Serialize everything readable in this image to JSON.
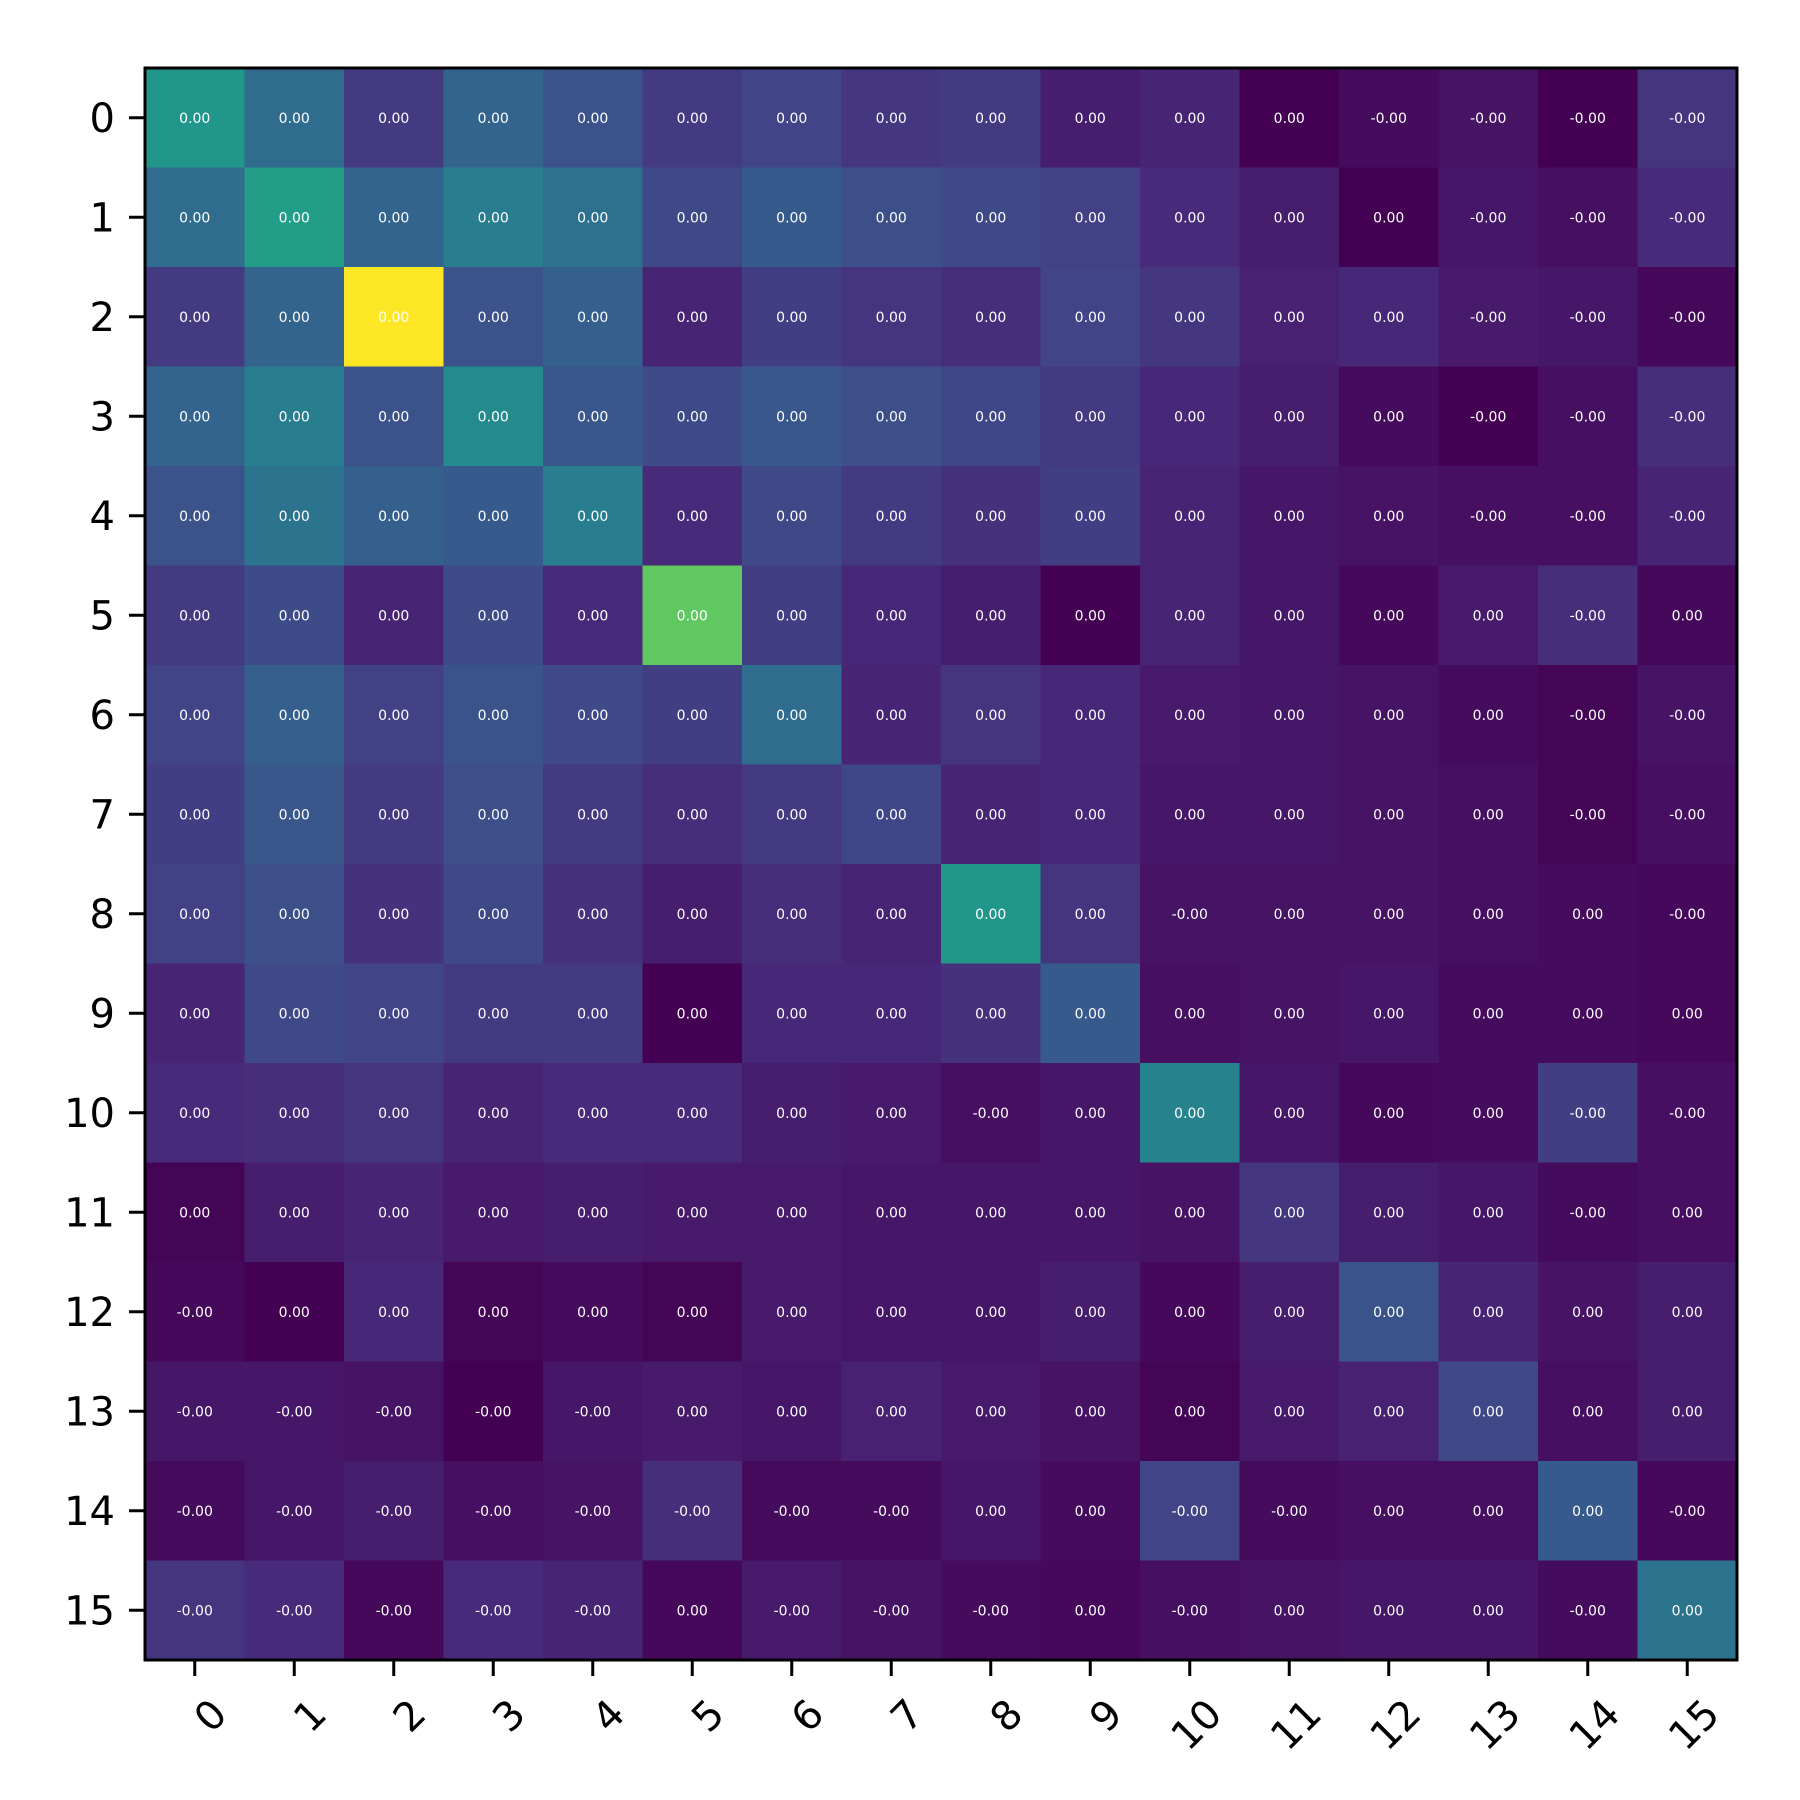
{
  "chart_data": {
    "type": "heatmap",
    "title": "",
    "xlabel": "",
    "ylabel": "",
    "colormap": "viridis",
    "x_categories": [
      "0",
      "1",
      "2",
      "3",
      "4",
      "5",
      "6",
      "7",
      "8",
      "9",
      "10",
      "11",
      "12",
      "13",
      "14",
      "15"
    ],
    "y_categories": [
      "0",
      "1",
      "2",
      "3",
      "4",
      "5",
      "6",
      "7",
      "8",
      "9",
      "10",
      "11",
      "12",
      "13",
      "14",
      "15"
    ],
    "x_tick_rotation_deg": 45,
    "grid": false,
    "intensity": [
      [
        0.52,
        0.35,
        0.17,
        0.32,
        0.25,
        0.17,
        0.2,
        0.16,
        0.17,
        0.08,
        0.1,
        0.0,
        0.03,
        0.05,
        0.0,
        0.15
      ],
      [
        0.35,
        0.55,
        0.32,
        0.42,
        0.37,
        0.22,
        0.28,
        0.24,
        0.22,
        0.19,
        0.12,
        0.08,
        0.0,
        0.06,
        0.04,
        0.12
      ],
      [
        0.17,
        0.32,
        1.0,
        0.25,
        0.3,
        0.1,
        0.18,
        0.15,
        0.13,
        0.2,
        0.16,
        0.09,
        0.11,
        0.07,
        0.06,
        0.02
      ],
      [
        0.32,
        0.42,
        0.25,
        0.47,
        0.27,
        0.23,
        0.27,
        0.24,
        0.21,
        0.17,
        0.11,
        0.08,
        0.03,
        0.0,
        0.04,
        0.13
      ],
      [
        0.25,
        0.38,
        0.3,
        0.28,
        0.42,
        0.12,
        0.22,
        0.17,
        0.14,
        0.18,
        0.1,
        0.06,
        0.05,
        0.04,
        0.04,
        0.1
      ],
      [
        0.17,
        0.23,
        0.1,
        0.23,
        0.12,
        0.75,
        0.18,
        0.11,
        0.08,
        0.0,
        0.1,
        0.06,
        0.02,
        0.07,
        0.13,
        0.02
      ],
      [
        0.2,
        0.3,
        0.19,
        0.26,
        0.22,
        0.18,
        0.35,
        0.1,
        0.15,
        0.11,
        0.07,
        0.06,
        0.05,
        0.03,
        0.01,
        0.05
      ],
      [
        0.18,
        0.27,
        0.17,
        0.24,
        0.17,
        0.13,
        0.17,
        0.21,
        0.1,
        0.11,
        0.06,
        0.06,
        0.05,
        0.04,
        0.01,
        0.04
      ],
      [
        0.19,
        0.24,
        0.14,
        0.22,
        0.14,
        0.08,
        0.13,
        0.1,
        0.52,
        0.15,
        0.05,
        0.05,
        0.05,
        0.04,
        0.03,
        0.02
      ],
      [
        0.1,
        0.22,
        0.2,
        0.17,
        0.17,
        0.0,
        0.11,
        0.11,
        0.14,
        0.28,
        0.04,
        0.05,
        0.06,
        0.03,
        0.03,
        0.02
      ],
      [
        0.12,
        0.13,
        0.15,
        0.1,
        0.12,
        0.12,
        0.08,
        0.07,
        0.04,
        0.06,
        0.44,
        0.06,
        0.02,
        0.03,
        0.18,
        0.04
      ],
      [
        0.01,
        0.08,
        0.1,
        0.07,
        0.08,
        0.07,
        0.07,
        0.06,
        0.06,
        0.06,
        0.05,
        0.16,
        0.08,
        0.06,
        0.03,
        0.04
      ],
      [
        0.02,
        0.0,
        0.11,
        0.01,
        0.03,
        0.01,
        0.07,
        0.06,
        0.06,
        0.08,
        0.02,
        0.08,
        0.26,
        0.1,
        0.05,
        0.08
      ],
      [
        0.06,
        0.06,
        0.05,
        0.0,
        0.06,
        0.07,
        0.06,
        0.09,
        0.07,
        0.05,
        0.01,
        0.07,
        0.09,
        0.22,
        0.04,
        0.08
      ],
      [
        0.03,
        0.06,
        0.08,
        0.04,
        0.05,
        0.13,
        0.03,
        0.03,
        0.06,
        0.03,
        0.2,
        0.03,
        0.04,
        0.04,
        0.28,
        0.02
      ],
      [
        0.15,
        0.12,
        0.02,
        0.12,
        0.1,
        0.02,
        0.07,
        0.05,
        0.03,
        0.02,
        0.04,
        0.05,
        0.06,
        0.06,
        0.03,
        0.38
      ]
    ],
    "cell_labels": [
      [
        "0.00",
        "0.00",
        "0.00",
        "0.00",
        "0.00",
        "0.00",
        "0.00",
        "0.00",
        "0.00",
        "0.00",
        "0.00",
        "0.00",
        "-0.00",
        "-0.00",
        "-0.00",
        "-0.00"
      ],
      [
        "0.00",
        "0.00",
        "0.00",
        "0.00",
        "0.00",
        "0.00",
        "0.00",
        "0.00",
        "0.00",
        "0.00",
        "0.00",
        "0.00",
        "0.00",
        "-0.00",
        "-0.00",
        "-0.00"
      ],
      [
        "0.00",
        "0.00",
        "0.00",
        "0.00",
        "0.00",
        "0.00",
        "0.00",
        "0.00",
        "0.00",
        "0.00",
        "0.00",
        "0.00",
        "0.00",
        "-0.00",
        "-0.00",
        "-0.00"
      ],
      [
        "0.00",
        "0.00",
        "0.00",
        "0.00",
        "0.00",
        "0.00",
        "0.00",
        "0.00",
        "0.00",
        "0.00",
        "0.00",
        "0.00",
        "0.00",
        "-0.00",
        "-0.00",
        "-0.00"
      ],
      [
        "0.00",
        "0.00",
        "0.00",
        "0.00",
        "0.00",
        "0.00",
        "0.00",
        "0.00",
        "0.00",
        "0.00",
        "0.00",
        "0.00",
        "0.00",
        "-0.00",
        "-0.00",
        "-0.00"
      ],
      [
        "0.00",
        "0.00",
        "0.00",
        "0.00",
        "0.00",
        "0.00",
        "0.00",
        "0.00",
        "0.00",
        "0.00",
        "0.00",
        "0.00",
        "0.00",
        "0.00",
        "-0.00",
        "0.00"
      ],
      [
        "0.00",
        "0.00",
        "0.00",
        "0.00",
        "0.00",
        "0.00",
        "0.00",
        "0.00",
        "0.00",
        "0.00",
        "0.00",
        "0.00",
        "0.00",
        "0.00",
        "-0.00",
        "-0.00"
      ],
      [
        "0.00",
        "0.00",
        "0.00",
        "0.00",
        "0.00",
        "0.00",
        "0.00",
        "0.00",
        "0.00",
        "0.00",
        "0.00",
        "0.00",
        "0.00",
        "0.00",
        "-0.00",
        "-0.00"
      ],
      [
        "0.00",
        "0.00",
        "0.00",
        "0.00",
        "0.00",
        "0.00",
        "0.00",
        "0.00",
        "0.00",
        "0.00",
        "-0.00",
        "0.00",
        "0.00",
        "0.00",
        "0.00",
        "-0.00"
      ],
      [
        "0.00",
        "0.00",
        "0.00",
        "0.00",
        "0.00",
        "0.00",
        "0.00",
        "0.00",
        "0.00",
        "0.00",
        "0.00",
        "0.00",
        "0.00",
        "0.00",
        "0.00",
        "0.00"
      ],
      [
        "0.00",
        "0.00",
        "0.00",
        "0.00",
        "0.00",
        "0.00",
        "0.00",
        "0.00",
        "-0.00",
        "0.00",
        "0.00",
        "0.00",
        "0.00",
        "0.00",
        "-0.00",
        "-0.00"
      ],
      [
        "0.00",
        "0.00",
        "0.00",
        "0.00",
        "0.00",
        "0.00",
        "0.00",
        "0.00",
        "0.00",
        "0.00",
        "0.00",
        "0.00",
        "0.00",
        "0.00",
        "-0.00",
        "0.00"
      ],
      [
        "-0.00",
        "0.00",
        "0.00",
        "0.00",
        "0.00",
        "0.00",
        "0.00",
        "0.00",
        "0.00",
        "0.00",
        "0.00",
        "0.00",
        "0.00",
        "0.00",
        "0.00",
        "0.00"
      ],
      [
        "-0.00",
        "-0.00",
        "-0.00",
        "-0.00",
        "-0.00",
        "0.00",
        "0.00",
        "0.00",
        "0.00",
        "0.00",
        "0.00",
        "0.00",
        "0.00",
        "0.00",
        "0.00",
        "0.00"
      ],
      [
        "-0.00",
        "-0.00",
        "-0.00",
        "-0.00",
        "-0.00",
        "-0.00",
        "-0.00",
        "-0.00",
        "0.00",
        "0.00",
        "-0.00",
        "-0.00",
        "0.00",
        "0.00",
        "0.00",
        "-0.00"
      ],
      [
        "-0.00",
        "-0.00",
        "-0.00",
        "-0.00",
        "-0.00",
        "0.00",
        "-0.00",
        "-0.00",
        "-0.00",
        "0.00",
        "-0.00",
        "0.00",
        "0.00",
        "0.00",
        "-0.00",
        "0.00"
      ]
    ]
  }
}
